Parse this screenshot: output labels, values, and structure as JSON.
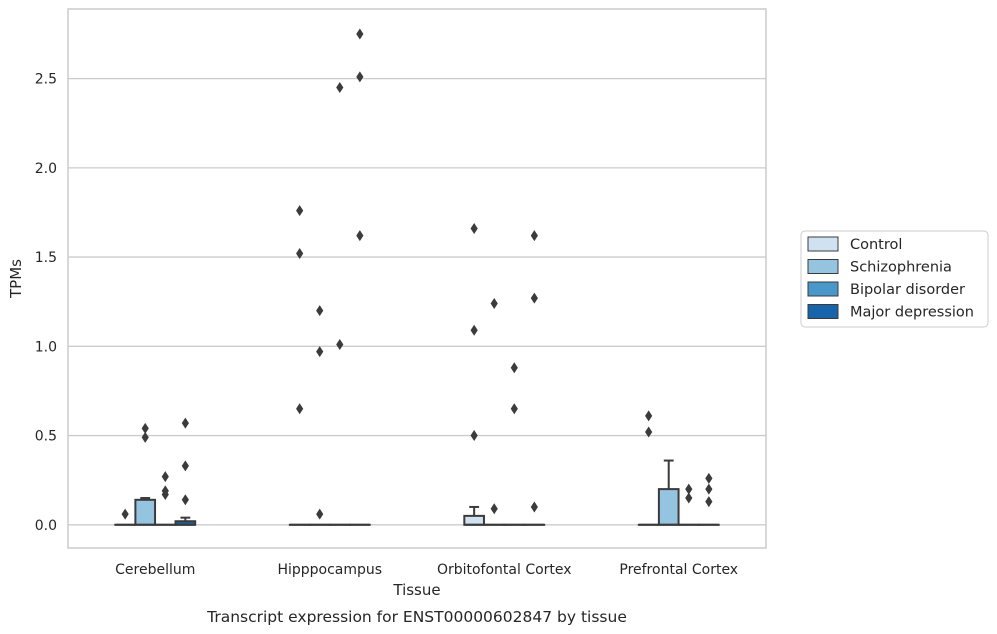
{
  "chart_data": {
    "type": "boxplot",
    "caption": "Transcript expression for ENST00000602847 by tissue",
    "xlabel": "Tissue",
    "ylabel": "TPMs",
    "ylim": [
      -0.13,
      2.89
    ],
    "yticks": [
      "0.0",
      "0.5",
      "1.0",
      "1.5",
      "2.0",
      "2.5"
    ],
    "ytick_values": [
      0.0,
      0.5,
      1.0,
      1.5,
      2.0,
      2.5
    ],
    "grid": "horizontal",
    "legend_position": "right",
    "categories": [
      "Cerebellum",
      "Hipppocampus",
      "Orbitofontal Cortex",
      "Prefrontal Cortex"
    ],
    "series": [
      {
        "name": "Control",
        "color": "#d0e1f2",
        "boxes": [
          {
            "q1": 0,
            "median": 0,
            "q3": 0,
            "whislo": 0,
            "whishi": 0,
            "fliers": [
              0.06
            ]
          },
          {
            "q1": 0,
            "median": 0,
            "q3": 0,
            "whislo": 0,
            "whishi": 0,
            "fliers": [
              0.65,
              1.52,
              1.76
            ]
          },
          {
            "q1": 0,
            "median": 0,
            "q3": 0.05,
            "whislo": 0,
            "whishi": 0.1,
            "fliers": [
              0.5,
              1.09,
              1.66
            ]
          },
          {
            "q1": 0,
            "median": 0,
            "q3": 0,
            "whislo": 0,
            "whishi": 0,
            "fliers": [
              0.52,
              0.61
            ]
          }
        ]
      },
      {
        "name": "Schizophrenia",
        "color": "#94c4df",
        "boxes": [
          {
            "q1": 0,
            "median": 0,
            "q3": 0.14,
            "whislo": 0,
            "whishi": 0.15,
            "fliers": [
              0.49,
              0.54
            ]
          },
          {
            "q1": 0,
            "median": 0,
            "q3": 0,
            "whislo": 0,
            "whishi": 0,
            "fliers": [
              0.06,
              0.97,
              1.2
            ]
          },
          {
            "q1": 0,
            "median": 0,
            "q3": 0,
            "whislo": 0,
            "whishi": 0,
            "fliers": [
              0.09,
              1.24
            ]
          },
          {
            "q1": 0,
            "median": 0,
            "q3": 0.2,
            "whislo": 0,
            "whishi": 0.36,
            "fliers": []
          }
        ]
      },
      {
        "name": "Bipolar disorder",
        "color": "#4a98c9",
        "boxes": [
          {
            "q1": 0,
            "median": 0,
            "q3": 0,
            "whislo": 0,
            "whishi": 0,
            "fliers": [
              0.17,
              0.19,
              0.27
            ]
          },
          {
            "q1": 0,
            "median": 0,
            "q3": 0,
            "whislo": 0,
            "whishi": 0,
            "fliers": [
              1.01,
              2.45
            ]
          },
          {
            "q1": 0,
            "median": 0,
            "q3": 0,
            "whislo": 0,
            "whishi": 0,
            "fliers": [
              0.65,
              0.88
            ]
          },
          {
            "q1": 0,
            "median": 0,
            "q3": 0,
            "whislo": 0,
            "whishi": 0,
            "fliers": [
              0.15,
              0.2
            ]
          }
        ]
      },
      {
        "name": "Major depression",
        "color": "#1764ab",
        "boxes": [
          {
            "q1": 0,
            "median": 0,
            "q3": 0.02,
            "whislo": 0,
            "whishi": 0.04,
            "fliers": [
              0.14,
              0.33,
              0.57
            ]
          },
          {
            "q1": 0,
            "median": 0,
            "q3": 0,
            "whislo": 0,
            "whishi": 0,
            "fliers": [
              1.62,
              2.51,
              2.75
            ]
          },
          {
            "q1": 0,
            "median": 0,
            "q3": 0,
            "whislo": 0,
            "whishi": 0,
            "fliers": [
              0.1,
              1.27,
              1.62
            ]
          },
          {
            "q1": 0,
            "median": 0,
            "q3": 0,
            "whislo": 0,
            "whishi": 0,
            "fliers": [
              0.13,
              0.2,
              0.26
            ]
          }
        ]
      }
    ],
    "colors": {
      "grid": "#cccccc",
      "frame": "#cccccc",
      "stroke": "#3b3b3b",
      "text": "#262626"
    }
  }
}
